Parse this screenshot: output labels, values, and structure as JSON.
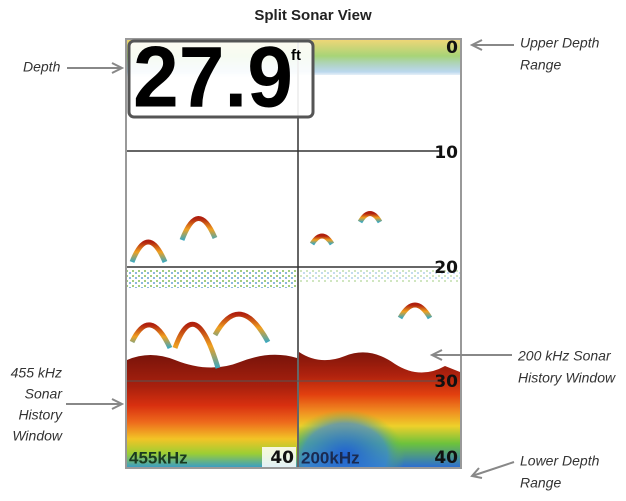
{
  "title": "Split Sonar View",
  "depth_display": {
    "value": "27.9",
    "unit": "ft"
  },
  "depth_scale": [
    0,
    10,
    20,
    30,
    40
  ],
  "windows": [
    {
      "frequency": "455kHz",
      "range": 40
    },
    {
      "frequency": "200kHz"
    }
  ],
  "callouts": [
    {
      "lines": [
        "Depth"
      ]
    },
    {
      "lines": [
        "Upper Depth",
        "Range"
      ]
    },
    {
      "lines": [
        "200 kHz Sonar",
        "History Window"
      ]
    },
    {
      "lines": [
        "455 kHz",
        "Sonar",
        "History",
        "Window"
      ]
    },
    {
      "lines": [
        "Lower Depth",
        "Range"
      ]
    }
  ]
}
